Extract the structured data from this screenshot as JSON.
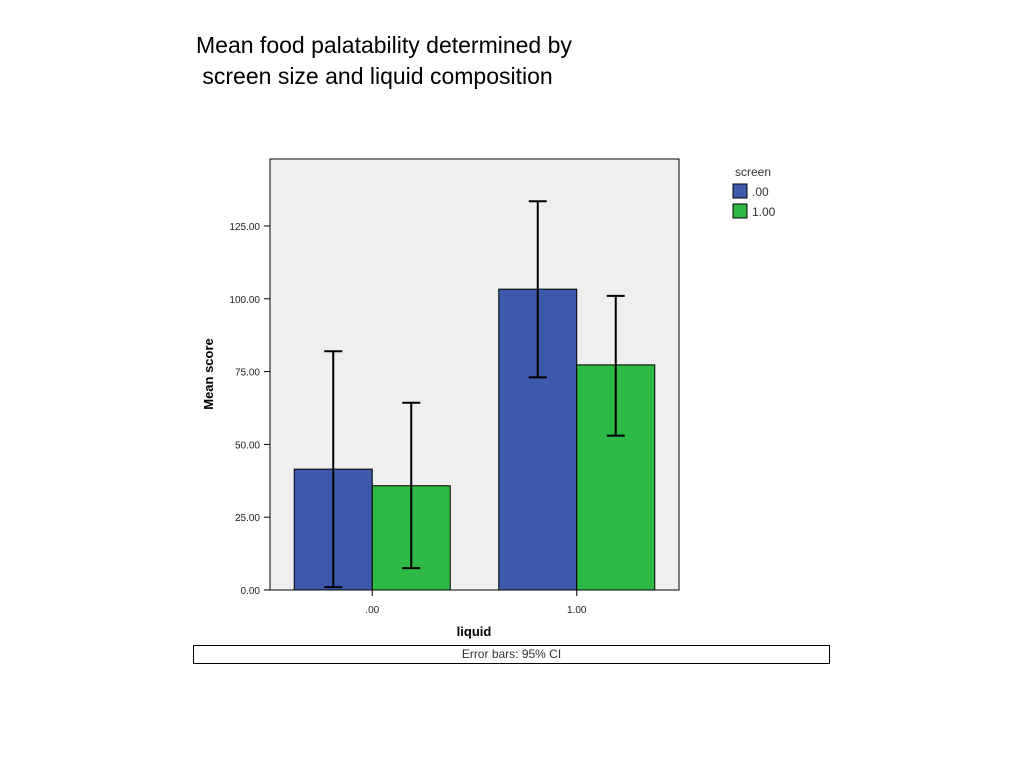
{
  "title": {
    "line1": "Mean food palatability determined by",
    "line2": " screen size and liquid composition"
  },
  "chart_data": {
    "type": "bar",
    "xlabel": "liquid",
    "ylabel": "Mean score",
    "categories": [
      ".00",
      "1.00"
    ],
    "series": [
      {
        "name": ".00",
        "color": "#3e59ac",
        "values": [
          41.5,
          103.3
        ],
        "ci_low": [
          1.0,
          73.0
        ],
        "ci_high": [
          82.0,
          133.5
        ]
      },
      {
        "name": "1.00",
        "color": "#2db946",
        "values": [
          35.8,
          77.3
        ],
        "ci_low": [
          7.5,
          53.0
        ],
        "ci_high": [
          64.3,
          101.0
        ]
      }
    ],
    "yticks": [
      "0.00",
      "25.00",
      "50.00",
      "75.00",
      "100.00",
      "125.00"
    ],
    "ylim": [
      0,
      148
    ],
    "legend_title": "screen",
    "legend_position": "right",
    "plot_background": "#efefef",
    "grid": false,
    "footnote": "Error bars: 95% CI"
  }
}
